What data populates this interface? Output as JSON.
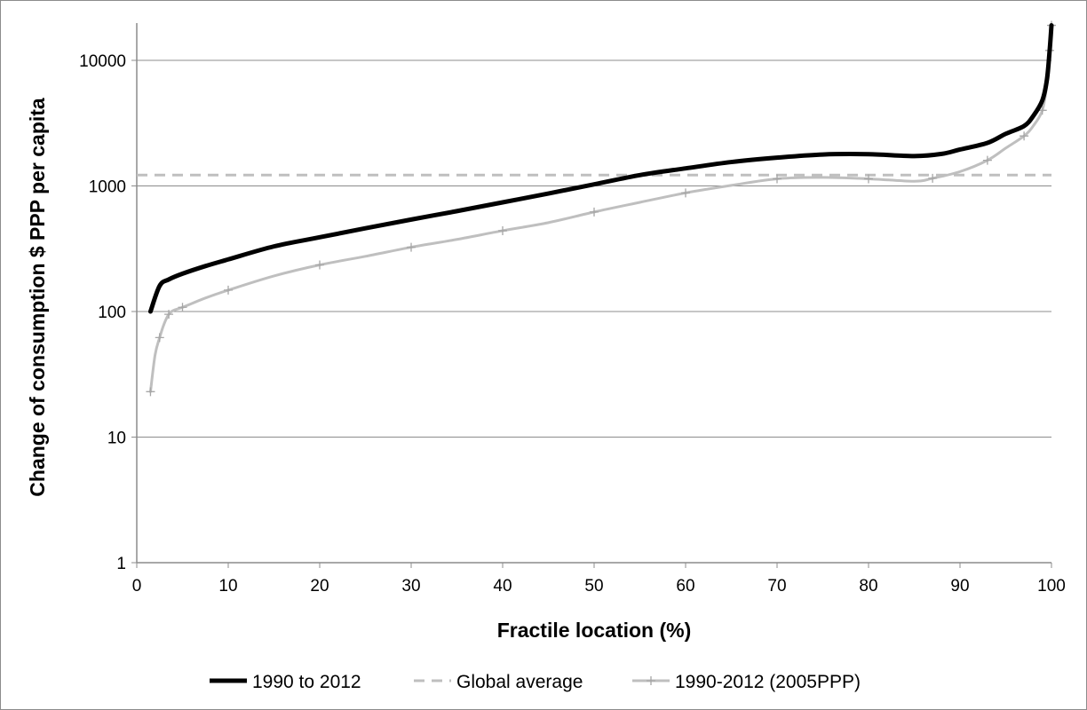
{
  "chart_data": {
    "type": "line",
    "xlabel": "Fractile location (%)",
    "ylabel": "Change of  consumption $ PPP per capita",
    "xlim": [
      0,
      100
    ],
    "ylim": [
      1,
      20000
    ],
    "y_scale": "log",
    "x_ticks": [
      "0",
      "10",
      "20",
      "30",
      "40",
      "50",
      "60",
      "70",
      "80",
      "90",
      "100"
    ],
    "y_ticks": [
      "1",
      "10",
      "100",
      "1000",
      "10000"
    ],
    "grid": "horizontal",
    "legend_position": "bottom",
    "series": [
      {
        "name": "1990 to 2012",
        "color": "#000000",
        "style": "solid",
        "x": [
          1.5,
          2.5,
          3.5,
          5,
          7.5,
          10,
          15,
          20,
          25,
          30,
          35,
          40,
          45,
          50,
          55,
          60,
          65,
          70,
          75,
          80,
          85,
          88,
          90,
          93,
          95,
          97,
          98,
          99,
          99.5,
          99.8,
          100
        ],
        "y": [
          100,
          160,
          180,
          200,
          230,
          260,
          330,
          390,
          460,
          540,
          630,
          740,
          870,
          1030,
          1220,
          1380,
          1550,
          1680,
          1780,
          1790,
          1730,
          1800,
          1950,
          2200,
          2600,
          3000,
          3600,
          4800,
          7000,
          12000,
          19000
        ]
      },
      {
        "name": "Global average",
        "color": "#bfbfbf",
        "style": "dashed",
        "x": [
          0,
          100
        ],
        "y": [
          1220,
          1220
        ]
      },
      {
        "name": "1990-2012 (2005PPP)",
        "color": "#bfbfbf",
        "style": "solid-plus-markers",
        "x": [
          1.5,
          2,
          2.5,
          3,
          3.5,
          4,
          5,
          7.5,
          10,
          15,
          20,
          25,
          30,
          35,
          40,
          45,
          50,
          55,
          60,
          65,
          70,
          75,
          80,
          85,
          87,
          90,
          93,
          95,
          97,
          98,
          99,
          99.5,
          99.8,
          100
        ],
        "y": [
          23,
          45,
          62,
          80,
          95,
          102,
          108,
          128,
          148,
          192,
          235,
          275,
          325,
          375,
          440,
          510,
          620,
          740,
          880,
          1010,
          1140,
          1170,
          1140,
          1090,
          1150,
          1300,
          1600,
          2000,
          2500,
          3000,
          4000,
          6500,
          12000,
          19000
        ]
      }
    ]
  }
}
